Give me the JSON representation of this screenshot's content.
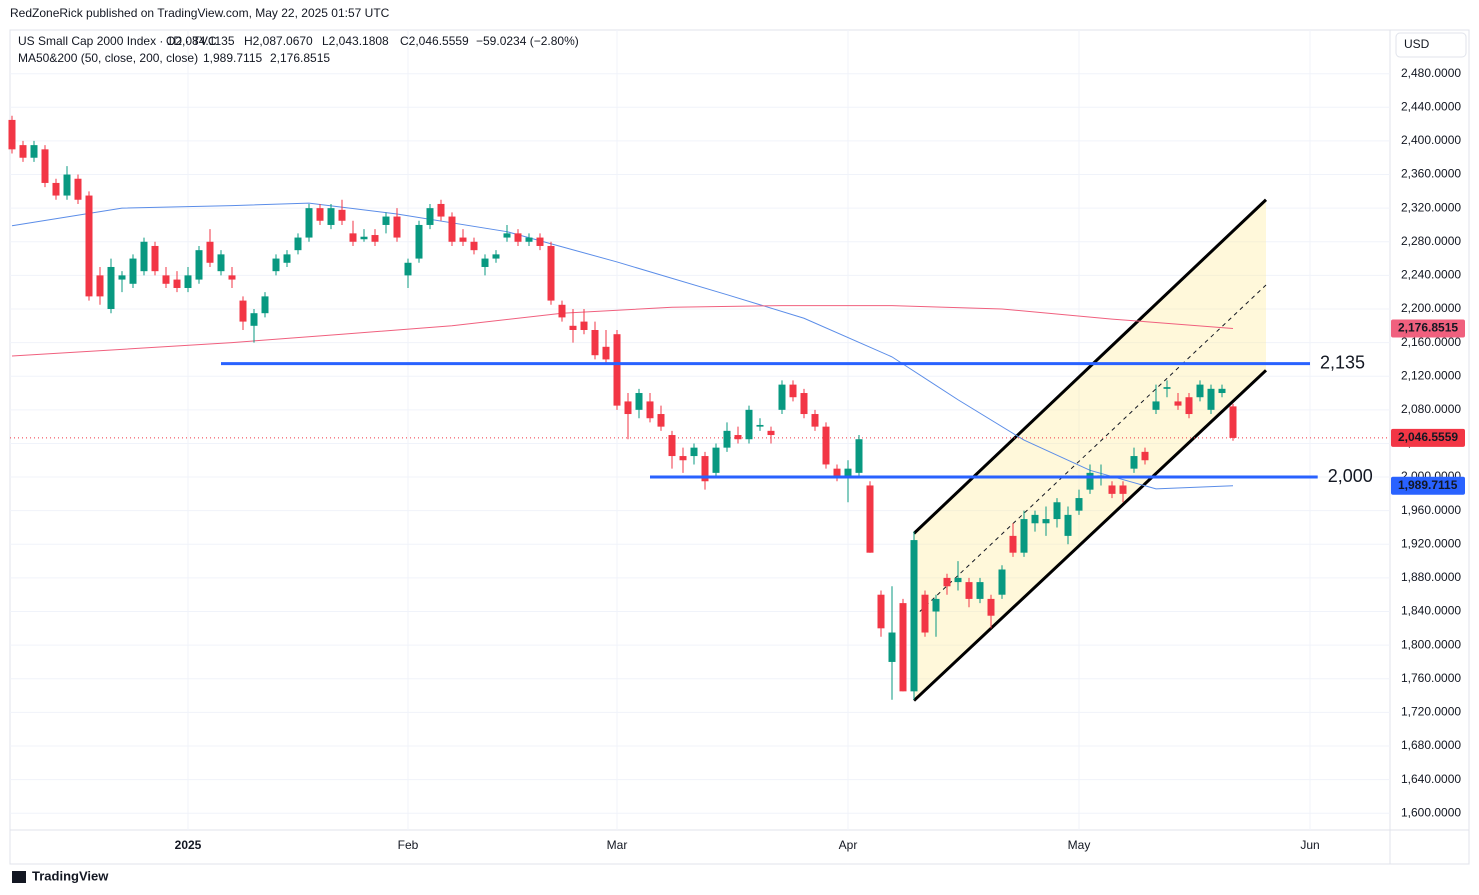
{
  "header": {
    "publisher": "RedZoneRick published on TradingView.com, May 22, 2025 01:57 UTC"
  },
  "footer": {
    "brand": "TradingView"
  },
  "chart_data": {
    "type": "candlestick",
    "legend": {
      "symbol": "US Small Cap 2000 Index · 1D · TVC",
      "ohlc": [
        "O2,084.1135",
        "H2,087.0670",
        "L2,043.1808",
        "C2,046.5559"
      ],
      "change": "−59.0234 (−2.80%)",
      "ma_title": "MA50&200 (50, close, 200, close)"
    },
    "currency": "USD",
    "up_color": "#089981",
    "down_color": "#f23645",
    "categories": [
      null,
      null,
      null,
      null,
      null,
      null,
      null,
      null,
      null,
      null,
      null,
      null,
      null,
      null,
      null,
      null,
      "2025",
      null,
      null,
      null,
      null,
      null,
      null,
      null,
      null,
      null,
      null,
      null,
      null,
      null,
      null,
      null,
      null,
      null,
      null,
      null,
      "Feb",
      null,
      null,
      null,
      null,
      null,
      null,
      null,
      null,
      null,
      null,
      null,
      null,
      null,
      null,
      null,
      null,
      null,
      null,
      "Mar",
      null,
      null,
      null,
      null,
      null,
      null,
      null,
      null,
      null,
      null,
      null,
      null,
      null,
      null,
      null,
      null,
      null,
      null,
      null,
      null,
      "Apr",
      null,
      null,
      null,
      null,
      null,
      null,
      null,
      null,
      null,
      null,
      null,
      null,
      null,
      null,
      null,
      null,
      null,
      null,
      null,
      null,
      "May",
      null,
      null,
      null,
      null,
      null,
      null,
      null,
      null,
      null,
      null,
      null,
      null,
      null,
      null,
      null,
      null,
      null,
      null,
      null,
      null,
      "Jun"
    ],
    "candles": {
      "open": [
        2425,
        2395,
        2380,
        2390,
        2350,
        2335,
        2355,
        2335,
        2240,
        2200,
        2235,
        2230,
        2245,
        2275,
        2240,
        2235,
        2225,
        2235,
        2280,
        2245,
        2240,
        2210,
        2180,
        2195,
        2245,
        2255,
        2270,
        2285,
        2320,
        2300,
        2318,
        2290,
        2283,
        2288,
        2300,
        2310,
        2240,
        2260,
        2300,
        2325,
        2310,
        2285,
        2280,
        2250,
        2260,
        2285,
        2290,
        2280,
        2285,
        2275,
        2205,
        2180,
        2185,
        2175,
        2155,
        2170,
        2090,
        2080,
        2090,
        2075,
        2050,
        2025,
        2025,
        2025,
        2005,
        2035,
        2050,
        2045,
        2060,
        2055,
        2080,
        2110,
        2100,
        2075,
        2060,
        2010,
        2000,
        2005,
        1990,
        1860,
        1780,
        1850,
        1745,
        1860,
        1840,
        1880,
        1875,
        1875,
        1855,
        1855,
        1860,
        1930,
        1910,
        1945,
        1945,
        1950,
        1930,
        1960,
        1985,
        2000,
        1990,
        1990,
        2010,
        2030,
        2080,
        2105,
        2090,
        2095,
        2095,
        2080,
        2100,
        2084.1135,
        null,
        null,
        null,
        null,
        null,
        null,
        null
      ],
      "high": [
        2430,
        2400,
        2400,
        2395,
        2355,
        2370,
        2360,
        2340,
        2250,
        2260,
        2245,
        2265,
        2285,
        2280,
        2250,
        2245,
        2250,
        2275,
        2295,
        2270,
        2250,
        2215,
        2200,
        2220,
        2265,
        2270,
        2290,
        2325,
        2325,
        2325,
        2330,
        2305,
        2295,
        2295,
        2315,
        2320,
        2260,
        2305,
        2325,
        2330,
        2315,
        2295,
        2285,
        2265,
        2270,
        2300,
        2295,
        2290,
        2290,
        2280,
        2210,
        2200,
        2200,
        2185,
        2175,
        2175,
        2100,
        2105,
        2100,
        2085,
        2055,
        2035,
        2040,
        2030,
        2040,
        2065,
        2060,
        2085,
        2070,
        2060,
        2115,
        2115,
        2105,
        2080,
        2065,
        2015,
        2020,
        2050,
        1995,
        1865,
        1870,
        1855,
        1935,
        1865,
        1860,
        1885,
        1900,
        1880,
        1880,
        1860,
        1895,
        1945,
        1960,
        1960,
        1965,
        1975,
        1965,
        1985,
        2015,
        2015,
        1995,
        1995,
        2035,
        2035,
        2110,
        2115,
        2100,
        2100,
        2115,
        2110,
        2110,
        2087.067,
        null,
        null,
        null,
        null,
        null,
        null,
        null
      ],
      "low": [
        2385,
        2375,
        2375,
        2345,
        2330,
        2330,
        2325,
        2210,
        2205,
        2195,
        2220,
        2225,
        2240,
        2240,
        2225,
        2220,
        2220,
        2230,
        2250,
        2240,
        2225,
        2175,
        2160,
        2190,
        2240,
        2250,
        2265,
        2280,
        2300,
        2295,
        2300,
        2275,
        2280,
        2275,
        2290,
        2280,
        2225,
        2255,
        2295,
        2305,
        2275,
        2275,
        2265,
        2240,
        2255,
        2280,
        2275,
        2275,
        2270,
        2205,
        2185,
        2160,
        2170,
        2140,
        2135,
        2080,
        2045,
        2070,
        2065,
        2055,
        2010,
        2005,
        2015,
        1985,
        2000,
        2030,
        2040,
        2040,
        2055,
        2040,
        2075,
        2090,
        2070,
        2055,
        2010,
        1995,
        1970,
        2000,
        1910,
        1810,
        1735,
        1745,
        1735,
        1810,
        1810,
        1860,
        1865,
        1845,
        1850,
        1820,
        1855,
        1905,
        1905,
        1935,
        1930,
        1940,
        1920,
        1955,
        1980,
        1990,
        1975,
        1970,
        2005,
        2015,
        2075,
        2095,
        2080,
        2070,
        2090,
        2075,
        2095,
        2043.1808,
        null,
        null,
        null,
        null,
        null,
        null,
        null
      ],
      "close": [
        2390,
        2380,
        2395,
        2350,
        2335,
        2360,
        2330,
        2215,
        2215,
        2250,
        2240,
        2260,
        2280,
        2245,
        2230,
        2225,
        2240,
        2270,
        2255,
        2265,
        2235,
        2185,
        2195,
        2215,
        2260,
        2265,
        2285,
        2320,
        2305,
        2320,
        2305,
        2280,
        2286,
        2280,
        2310,
        2285,
        2255,
        2300,
        2320,
        2310,
        2280,
        2280,
        2270,
        2260,
        2265,
        2290,
        2280,
        2285,
        2275,
        2210,
        2190,
        2175,
        2175,
        2145,
        2140,
        2085,
        2075,
        2100,
        2070,
        2060,
        2025,
        2020,
        2035,
        1995,
        2035,
        2055,
        2045,
        2080,
        2062,
        2050,
        2110,
        2095,
        2075,
        2060,
        2015,
        2000,
        2010,
        2045,
        1910,
        1820,
        1815,
        1745,
        1925,
        1815,
        1855,
        1870,
        1880,
        1855,
        1875,
        1835,
        1890,
        1910,
        1950,
        1955,
        1950,
        1970,
        1955,
        1975,
        2005,
        2002,
        1980,
        1980,
        2025,
        2020,
        2090,
        2107,
        2085,
        2075,
        2110,
        2105,
        2105,
        2046.5559,
        null,
        null,
        null,
        null,
        null,
        null,
        null
      ]
    },
    "last_price": {
      "value": 2046.5559,
      "label": "2,046.5559"
    },
    "ma": [
      {
        "name": "MA50",
        "color": "#5b8de8",
        "x": [
          0,
          10,
          20,
          27,
          35,
          45,
          55,
          65,
          72,
          80,
          86,
          92,
          98,
          104,
          111
        ],
        "values": [
          2299,
          2320,
          2323,
          2326,
          2313,
          2292,
          2256,
          2217,
          2189,
          2143,
          2092,
          2044,
          2008,
          1986,
          1989.7115
        ],
        "last_label": {
          "value": 1989.7115,
          "label": "1,989.7115"
        }
      },
      {
        "name": "MA200",
        "color": "#f0607e",
        "x": [
          0,
          10,
          20,
          30,
          40,
          50,
          60,
          70,
          80,
          90,
          100,
          111
        ],
        "values": [
          2144,
          2152,
          2160,
          2170,
          2180,
          2195,
          2202,
          2204,
          2204,
          2200,
          2188,
          2176.8515
        ],
        "last_label": {
          "value": 2176.8515,
          "label": "2,176.8515"
        }
      }
    ],
    "levels": [
      {
        "value": 2135,
        "label": "2,135",
        "from": 19,
        "to": 118
      },
      {
        "value": 2000,
        "label": "2,000",
        "from": 58,
        "to": 118.7
      }
    ],
    "channel": {
      "lower": {
        "x": [
          82,
          114
        ],
        "values": [
          1734,
          2127
        ]
      },
      "upper": {
        "x": [
          82,
          114
        ],
        "values": [
          1933,
          2330
        ]
      }
    },
    "ylim": [
      1580,
      2532
    ],
    "yticks": [
      {
        "value": 1600,
        "label": "1,600.0000"
      },
      {
        "value": 1640,
        "label": "1,640.0000"
      },
      {
        "value": 1680,
        "label": "1,680.0000"
      },
      {
        "value": 1720,
        "label": "1,720.0000"
      },
      {
        "value": 1760,
        "label": "1,760.0000"
      },
      {
        "value": 1800,
        "label": "1,800.0000"
      },
      {
        "value": 1840,
        "label": "1,840.0000"
      },
      {
        "value": 1880,
        "label": "1,880.0000"
      },
      {
        "value": 1920,
        "label": "1,920.0000"
      },
      {
        "value": 1960,
        "label": "1,960.0000"
      },
      {
        "value": 2000,
        "label": "2,000.0000"
      },
      {
        "value": 2040,
        "label": "2,040.0000"
      },
      {
        "value": 2080,
        "label": "2,080.0000"
      },
      {
        "value": 2120,
        "label": "2,120.0000"
      },
      {
        "value": 2160,
        "label": "2,160.0000"
      },
      {
        "value": 2200,
        "label": "2,200.0000"
      },
      {
        "value": 2240,
        "label": "2,240.0000"
      },
      {
        "value": 2280,
        "label": "2,280.0000"
      },
      {
        "value": 2320,
        "label": "2,320.0000"
      },
      {
        "value": 2360,
        "label": "2,360.0000"
      },
      {
        "value": 2400,
        "label": "2,400.0000"
      },
      {
        "value": 2440,
        "label": "2,440.0000"
      },
      {
        "value": 2480,
        "label": "2,480.0000"
      }
    ],
    "grid": true
  }
}
